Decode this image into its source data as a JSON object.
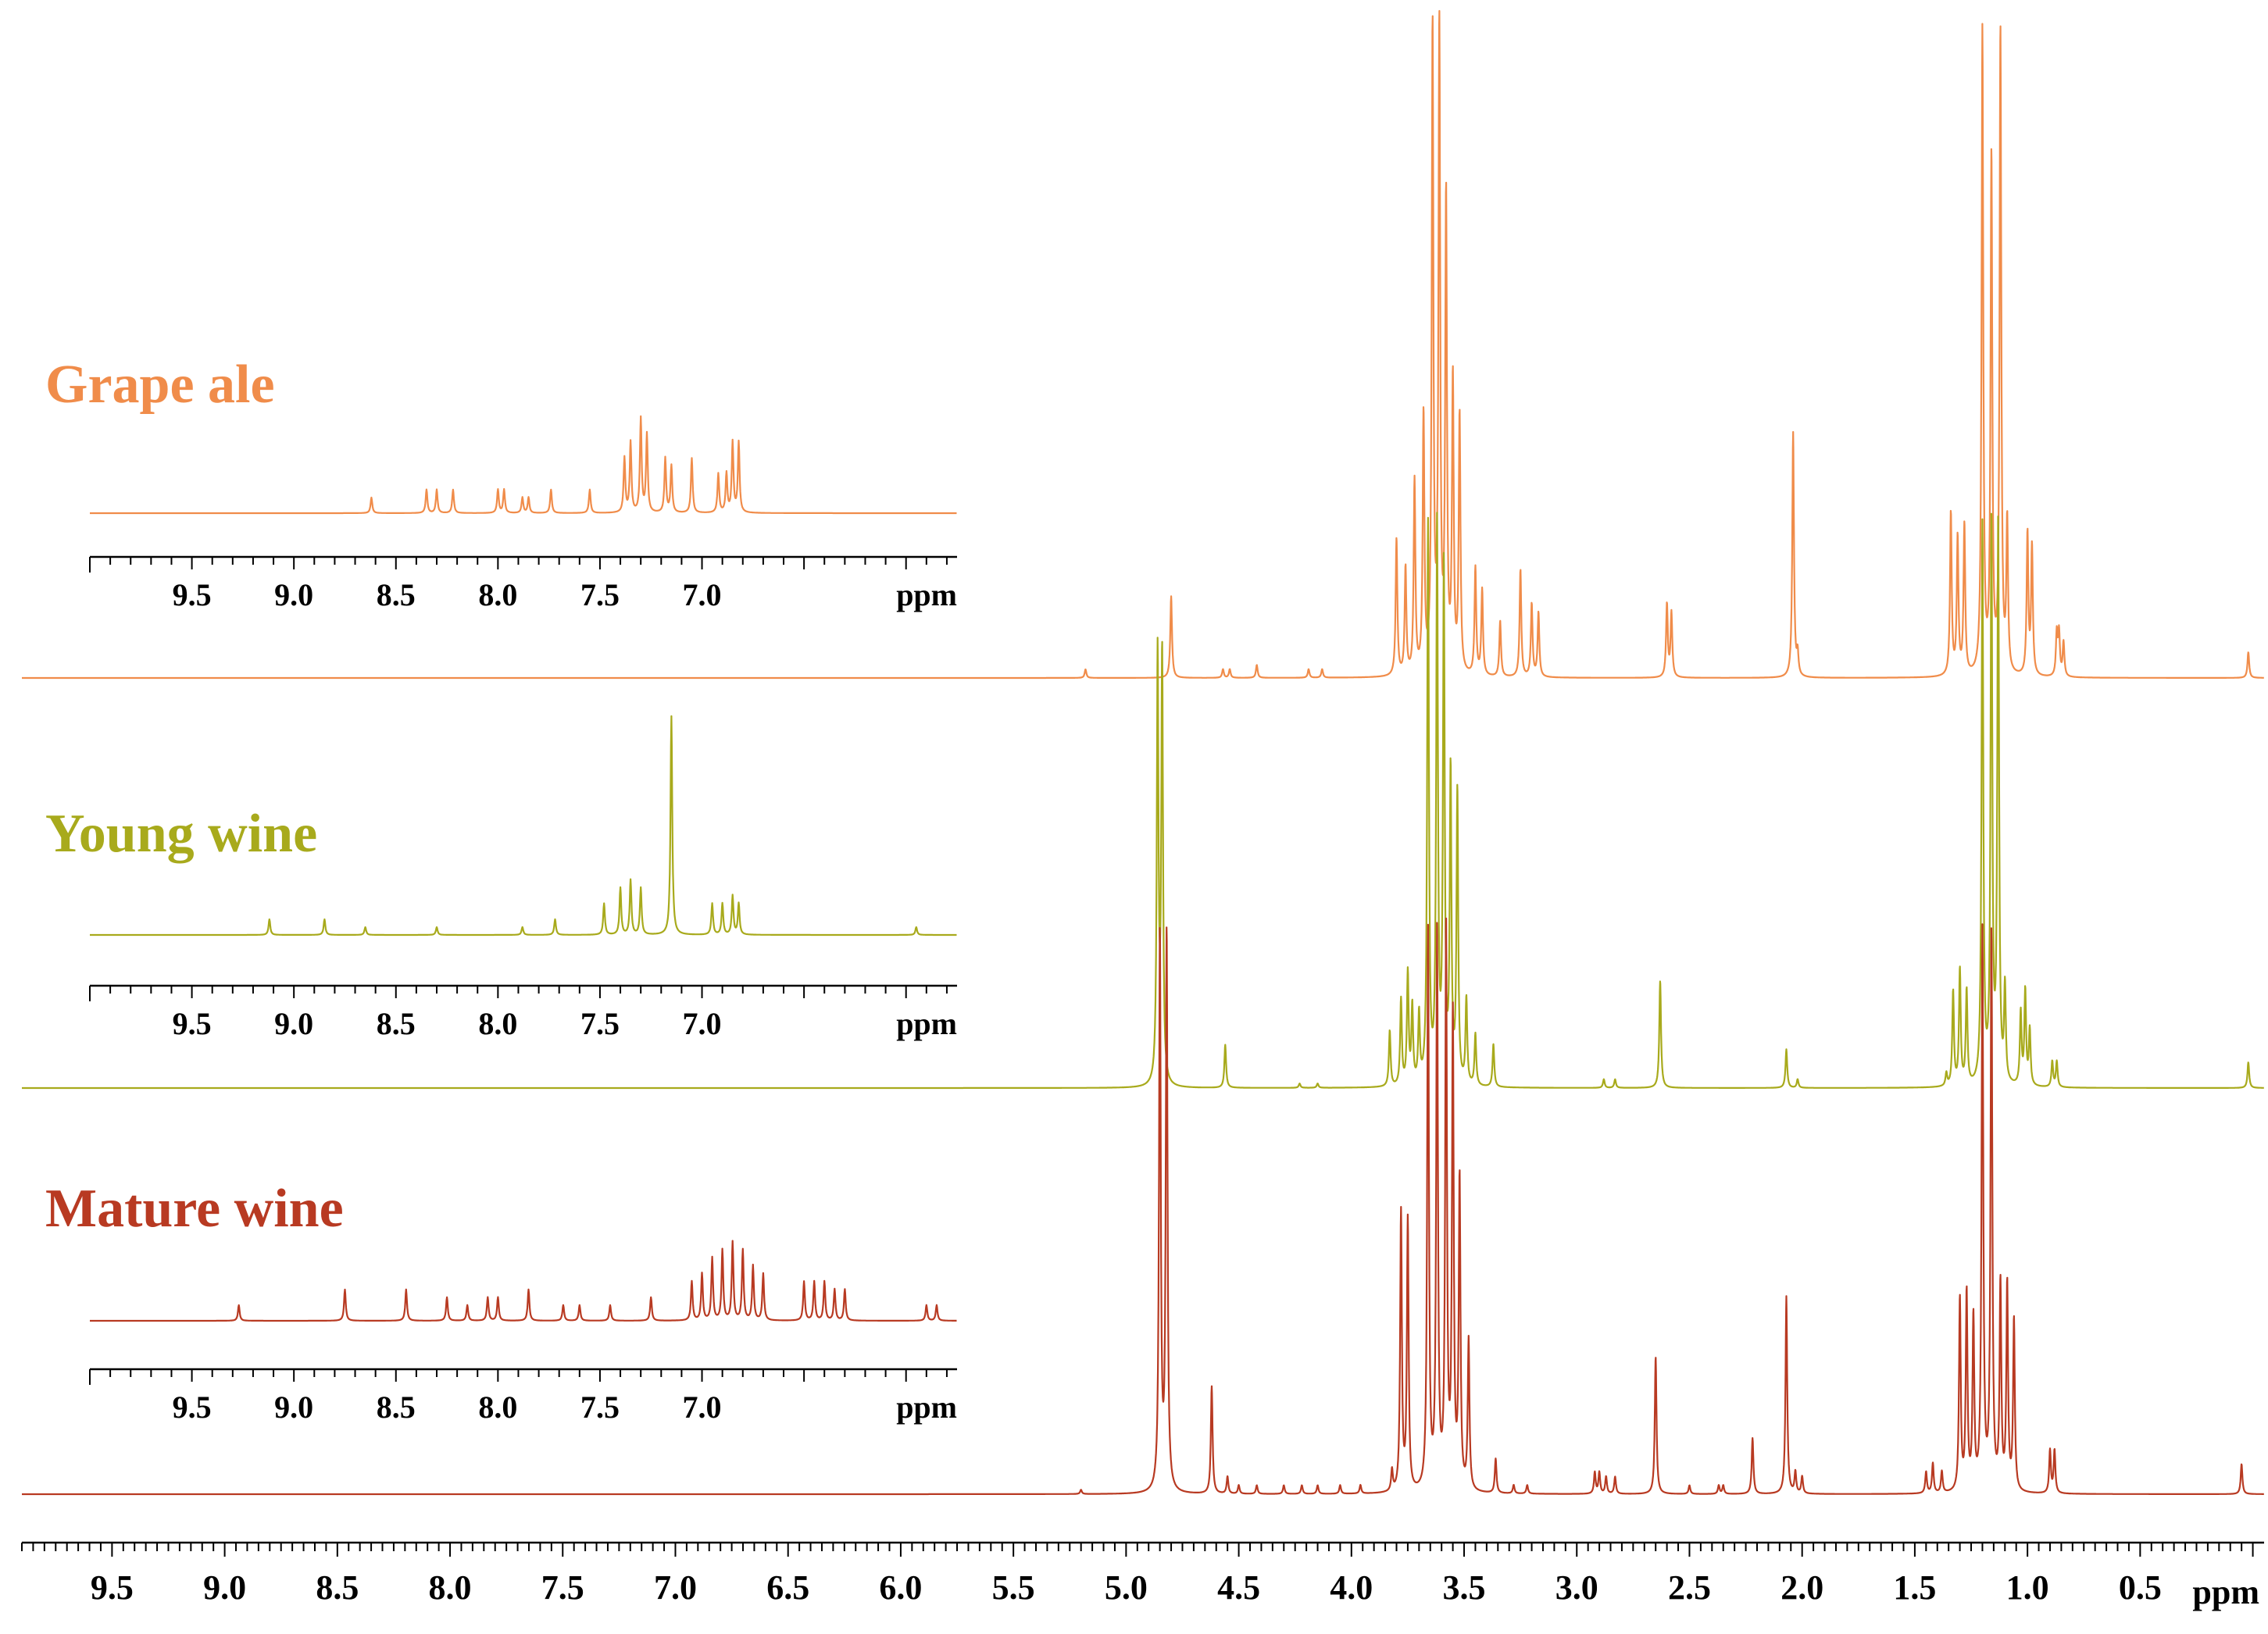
{
  "chart_data": {
    "type": "line",
    "subtype": "stacked 1H NMR spectra with aromatic-region insets",
    "x_unit": "ppm",
    "x_axis_reversed": true,
    "xlim": [
      9.9,
      -0.05
    ],
    "x_ticks": [
      "9.5",
      "9.0",
      "8.5",
      "8.0",
      "7.5",
      "7.0",
      "6.5",
      "6.0",
      "5.5",
      "5.0",
      "4.5",
      "4.0",
      "3.5",
      "3.0",
      "2.5",
      "2.0",
      "1.5",
      "1.0",
      "0.5"
    ],
    "x_tick_values": [
      9.5,
      9.0,
      8.5,
      8.0,
      7.5,
      7.0,
      6.5,
      6.0,
      5.5,
      5.0,
      4.5,
      4.0,
      3.5,
      3.0,
      2.5,
      2.0,
      1.5,
      1.0,
      0.5
    ],
    "x_unit_label": "ppm",
    "inset_xlim": [
      10.0,
      5.75
    ],
    "inset_ticks": [
      "9.5",
      "9.0",
      "8.5",
      "8.0",
      "7.5",
      "7.0"
    ],
    "inset_tick_values": [
      9.5,
      9.0,
      8.5,
      8.0,
      7.5,
      7.0
    ],
    "series": [
      {
        "name": "Grape ale",
        "color": "#f08c4a",
        "peaks": [
          [
            5.18,
            0.02
          ],
          [
            4.8,
            0.19
          ],
          [
            4.57,
            0.02
          ],
          [
            4.54,
            0.02
          ],
          [
            4.42,
            0.03
          ],
          [
            4.19,
            0.02
          ],
          [
            4.13,
            0.02
          ],
          [
            3.8,
            0.32
          ],
          [
            3.76,
            0.25
          ],
          [
            3.72,
            0.45
          ],
          [
            3.68,
            0.6
          ],
          [
            3.64,
            1.5
          ],
          [
            3.61,
            1.5
          ],
          [
            3.58,
            1.1
          ],
          [
            3.55,
            0.68
          ],
          [
            3.52,
            0.6
          ],
          [
            3.45,
            0.25
          ],
          [
            3.42,
            0.2
          ],
          [
            3.34,
            0.13
          ],
          [
            3.25,
            0.25
          ],
          [
            3.2,
            0.17
          ],
          [
            3.17,
            0.15
          ],
          [
            2.6,
            0.17
          ],
          [
            2.58,
            0.15
          ],
          [
            2.04,
            0.57
          ],
          [
            2.02,
            0.05
          ],
          [
            1.34,
            0.38
          ],
          [
            1.31,
            0.32
          ],
          [
            1.28,
            0.35
          ],
          [
            1.2,
            1.5
          ],
          [
            1.16,
            1.2
          ],
          [
            1.12,
            1.5
          ],
          [
            1.09,
            0.35
          ],
          [
            1.0,
            0.33
          ],
          [
            0.98,
            0.3
          ],
          [
            0.87,
            0.1
          ],
          [
            0.86,
            0.1
          ],
          [
            0.84,
            0.08
          ],
          [
            0.02,
            0.06
          ]
        ],
        "inset_peaks": [
          [
            8.62,
            0.02
          ],
          [
            8.35,
            0.03
          ],
          [
            8.3,
            0.03
          ],
          [
            8.22,
            0.03
          ],
          [
            8.0,
            0.03
          ],
          [
            7.97,
            0.03
          ],
          [
            7.88,
            0.02
          ],
          [
            7.85,
            0.02
          ],
          [
            7.74,
            0.03
          ],
          [
            7.55,
            0.03
          ],
          [
            7.38,
            0.07
          ],
          [
            7.35,
            0.09
          ],
          [
            7.3,
            0.12
          ],
          [
            7.27,
            0.1
          ],
          [
            7.18,
            0.07
          ],
          [
            7.15,
            0.06
          ],
          [
            7.05,
            0.07
          ],
          [
            6.92,
            0.05
          ],
          [
            6.88,
            0.05
          ],
          [
            6.85,
            0.09
          ],
          [
            6.82,
            0.09
          ]
        ]
      },
      {
        "name": "Young wine",
        "color": "#a8aa1c",
        "peaks": [
          [
            4.86,
            1.0
          ],
          [
            4.84,
            1.0
          ],
          [
            4.56,
            0.1
          ],
          [
            4.23,
            0.01
          ],
          [
            4.15,
            0.01
          ],
          [
            3.83,
            0.13
          ],
          [
            3.78,
            0.2
          ],
          [
            3.75,
            0.26
          ],
          [
            3.73,
            0.18
          ],
          [
            3.7,
            0.16
          ],
          [
            3.66,
            1.3
          ],
          [
            3.62,
            1.3
          ],
          [
            3.59,
            1.2
          ],
          [
            3.56,
            0.72
          ],
          [
            3.53,
            0.68
          ],
          [
            3.49,
            0.2
          ],
          [
            3.45,
            0.12
          ],
          [
            3.37,
            0.1
          ],
          [
            2.88,
            0.02
          ],
          [
            2.83,
            0.02
          ],
          [
            2.63,
            0.25
          ],
          [
            2.07,
            0.09
          ],
          [
            2.02,
            0.02
          ],
          [
            1.36,
            0.03
          ],
          [
            1.33,
            0.22
          ],
          [
            1.3,
            0.27
          ],
          [
            1.27,
            0.22
          ],
          [
            1.2,
            1.3
          ],
          [
            1.16,
            1.3
          ],
          [
            1.13,
            1.3
          ],
          [
            1.1,
            0.22
          ],
          [
            1.03,
            0.17
          ],
          [
            1.01,
            0.22
          ],
          [
            0.99,
            0.13
          ],
          [
            0.89,
            0.06
          ],
          [
            0.87,
            0.06
          ],
          [
            0.02,
            0.06
          ]
        ],
        "inset_peaks": [
          [
            9.12,
            0.02
          ],
          [
            8.85,
            0.02
          ],
          [
            8.65,
            0.01
          ],
          [
            8.3,
            0.01
          ],
          [
            7.88,
            0.01
          ],
          [
            7.72,
            0.02
          ],
          [
            7.48,
            0.04
          ],
          [
            7.4,
            0.06
          ],
          [
            7.35,
            0.07
          ],
          [
            7.3,
            0.06
          ],
          [
            7.15,
            0.28
          ],
          [
            6.95,
            0.04
          ],
          [
            6.9,
            0.04
          ],
          [
            6.85,
            0.05
          ],
          [
            6.82,
            0.04
          ],
          [
            5.95,
            0.01
          ]
        ]
      },
      {
        "name": "Mature wine",
        "color": "#b83a22",
        "peaks": [
          [
            5.2,
            0.01
          ],
          [
            4.85,
            1.3
          ],
          [
            4.82,
            1.3
          ],
          [
            4.62,
            0.25
          ],
          [
            4.55,
            0.04
          ],
          [
            4.5,
            0.02
          ],
          [
            4.42,
            0.02
          ],
          [
            4.3,
            0.02
          ],
          [
            4.22,
            0.02
          ],
          [
            4.15,
            0.02
          ],
          [
            4.05,
            0.02
          ],
          [
            3.96,
            0.02
          ],
          [
            3.82,
            0.05
          ],
          [
            3.78,
            0.65
          ],
          [
            3.75,
            0.63
          ],
          [
            3.66,
            1.3
          ],
          [
            3.62,
            1.3
          ],
          [
            3.58,
            1.3
          ],
          [
            3.55,
            1.1
          ],
          [
            3.52,
            0.72
          ],
          [
            3.48,
            0.35
          ],
          [
            3.36,
            0.08
          ],
          [
            3.28,
            0.02
          ],
          [
            3.22,
            0.02
          ],
          [
            2.92,
            0.05
          ],
          [
            2.9,
            0.05
          ],
          [
            2.87,
            0.04
          ],
          [
            2.83,
            0.04
          ],
          [
            2.65,
            0.32
          ],
          [
            2.5,
            0.02
          ],
          [
            2.37,
            0.02
          ],
          [
            2.35,
            0.02
          ],
          [
            2.22,
            0.13
          ],
          [
            2.07,
            0.46
          ],
          [
            2.03,
            0.05
          ],
          [
            2.0,
            0.04
          ],
          [
            1.45,
            0.05
          ],
          [
            1.42,
            0.07
          ],
          [
            1.38,
            0.05
          ],
          [
            1.3,
            0.45
          ],
          [
            1.27,
            0.46
          ],
          [
            1.24,
            0.4
          ],
          [
            1.2,
            1.3
          ],
          [
            1.16,
            1.3
          ],
          [
            1.12,
            0.48
          ],
          [
            1.09,
            0.48
          ],
          [
            1.06,
            0.4
          ],
          [
            0.9,
            0.1
          ],
          [
            0.88,
            0.1
          ],
          [
            0.05,
            0.07
          ]
        ],
        "inset_peaks": [
          [
            9.27,
            0.02
          ],
          [
            8.75,
            0.04
          ],
          [
            8.45,
            0.04
          ],
          [
            8.25,
            0.03
          ],
          [
            8.15,
            0.02
          ],
          [
            8.05,
            0.03
          ],
          [
            8.0,
            0.03
          ],
          [
            7.85,
            0.04
          ],
          [
            7.68,
            0.02
          ],
          [
            7.6,
            0.02
          ],
          [
            7.45,
            0.02
          ],
          [
            7.25,
            0.03
          ],
          [
            7.05,
            0.05
          ],
          [
            7.0,
            0.06
          ],
          [
            6.95,
            0.08
          ],
          [
            6.9,
            0.09
          ],
          [
            6.85,
            0.1
          ],
          [
            6.8,
            0.09
          ],
          [
            6.75,
            0.07
          ],
          [
            6.7,
            0.06
          ],
          [
            6.5,
            0.05
          ],
          [
            6.45,
            0.05
          ],
          [
            6.4,
            0.05
          ],
          [
            6.35,
            0.04
          ],
          [
            6.3,
            0.04
          ],
          [
            5.9,
            0.02
          ],
          [
            5.85,
            0.02
          ]
        ]
      }
    ]
  }
}
